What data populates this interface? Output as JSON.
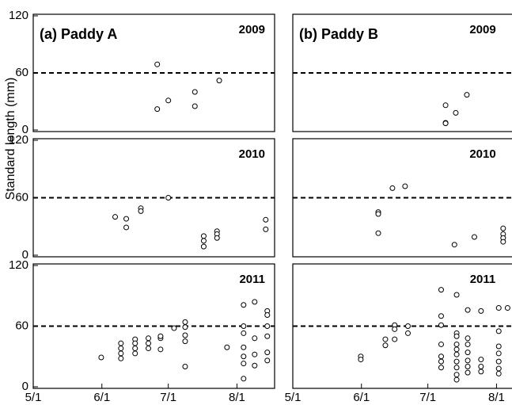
{
  "chart_data": [
    {
      "type": "scatter",
      "title": "(a) Paddy A",
      "annotation": "2009",
      "ylabel": "Standard length (mm)",
      "hline": 60,
      "x": [
        177,
        182,
        177,
        194,
        194,
        205
      ],
      "values": [
        69,
        31,
        22,
        40,
        25,
        52
      ],
      "xlim": [
        121,
        230
      ],
      "ylim": [
        0,
        120
      ],
      "yticks": [
        0,
        60,
        120
      ],
      "color": "#000000"
    },
    {
      "type": "scatter",
      "title": "(b) Paddy B",
      "annotation": "2009",
      "hline": 60,
      "x": [
        190,
        190,
        190,
        194.6,
        199.6
      ],
      "values": [
        26,
        7.5,
        7,
        18,
        37
      ],
      "xlim": [
        121,
        230
      ],
      "ylim": [
        0,
        120
      ],
      "color": "#000000"
    },
    {
      "type": "scatter",
      "annotation": "2010",
      "hline": 60,
      "x": [
        158,
        163,
        163,
        169.6,
        169.6,
        182,
        198,
        198,
        198,
        204,
        204,
        204,
        226,
        226
      ],
      "values": [
        40,
        38,
        29,
        49,
        46,
        60,
        20,
        15,
        9,
        25,
        22,
        18,
        37,
        27
      ],
      "xlim": [
        121,
        230
      ],
      "ylim": [
        0,
        120
      ],
      "yticks": [
        0,
        60,
        120
      ],
      "color": "#000000"
    },
    {
      "type": "scatter",
      "annotation": "2010",
      "hline": 60,
      "x": [
        159.6,
        159.6,
        159.6,
        166,
        171.7,
        194,
        203,
        216,
        216,
        216,
        216
      ],
      "values": [
        45,
        43,
        23,
        70,
        72,
        11,
        19,
        28,
        22,
        18,
        14
      ],
      "xlim": [
        121,
        230
      ],
      "ylim": [
        0,
        120
      ],
      "color": "#000000"
    },
    {
      "type": "scatter",
      "annotation": "2011",
      "hline": 60,
      "x": [
        151.7,
        160.6,
        160.6,
        160.6,
        160.6,
        167,
        167,
        167,
        167,
        173,
        173,
        173,
        178.5,
        178.5,
        178.5,
        184.6,
        189.6,
        189.6,
        189.6,
        189.6,
        189.6,
        208.5,
        216,
        216,
        216,
        216,
        216,
        216,
        216,
        221,
        221,
        221,
        221,
        226.7,
        226.7,
        226.7,
        226.7,
        226.7,
        226.7
      ],
      "values": [
        29,
        43,
        38,
        33,
        28,
        47,
        43,
        38,
        33,
        48,
        43,
        38,
        48,
        50,
        37,
        58,
        64,
        59,
        51,
        45,
        20,
        39,
        81,
        60,
        53,
        39,
        30,
        23,
        8,
        84,
        48,
        32,
        21,
        75,
        71,
        60,
        50,
        34,
        26
      ],
      "xlim": [
        121,
        230
      ],
      "ylim": [
        0,
        120
      ],
      "yticks": [
        0,
        60,
        120
      ],
      "xticks": [
        {
          "value": 121,
          "label": "5/1"
        },
        {
          "value": 152,
          "label": "6/1"
        },
        {
          "value": 182,
          "label": "7/1"
        },
        {
          "value": 213,
          "label": "8/1"
        }
      ],
      "color": "#000000"
    },
    {
      "type": "scatter",
      "annotation": "2011",
      "hline": 60,
      "x": [
        151.7,
        151.7,
        162.8,
        162.8,
        167,
        167,
        167,
        173,
        173,
        188,
        188,
        188,
        188,
        188,
        188,
        188,
        195,
        195,
        195,
        195,
        195,
        195,
        195,
        195,
        195,
        195,
        200,
        200,
        200,
        200,
        200,
        200,
        200,
        206,
        206,
        206,
        206,
        214,
        214,
        214,
        214,
        214,
        214,
        214,
        218
      ],
      "values": [
        30,
        27,
        47,
        41,
        61,
        57,
        47,
        60,
        53,
        96,
        70,
        61,
        42,
        30,
        25,
        19,
        91,
        53,
        42,
        32,
        25,
        19,
        12,
        7,
        50,
        37,
        42,
        34,
        26,
        20,
        14,
        48,
        76,
        75,
        27,
        20,
        15,
        78,
        55,
        40,
        33,
        25,
        18,
        13,
        78
      ],
      "xlim": [
        121,
        230
      ],
      "ylim": [
        0,
        120
      ],
      "xticks": [
        {
          "value": 121,
          "label": "5/1"
        },
        {
          "value": 152,
          "label": "6/1"
        },
        {
          "value": 182,
          "label": "7/1"
        },
        {
          "value": 213,
          "label": "8/1"
        }
      ],
      "color": "#000000"
    }
  ]
}
